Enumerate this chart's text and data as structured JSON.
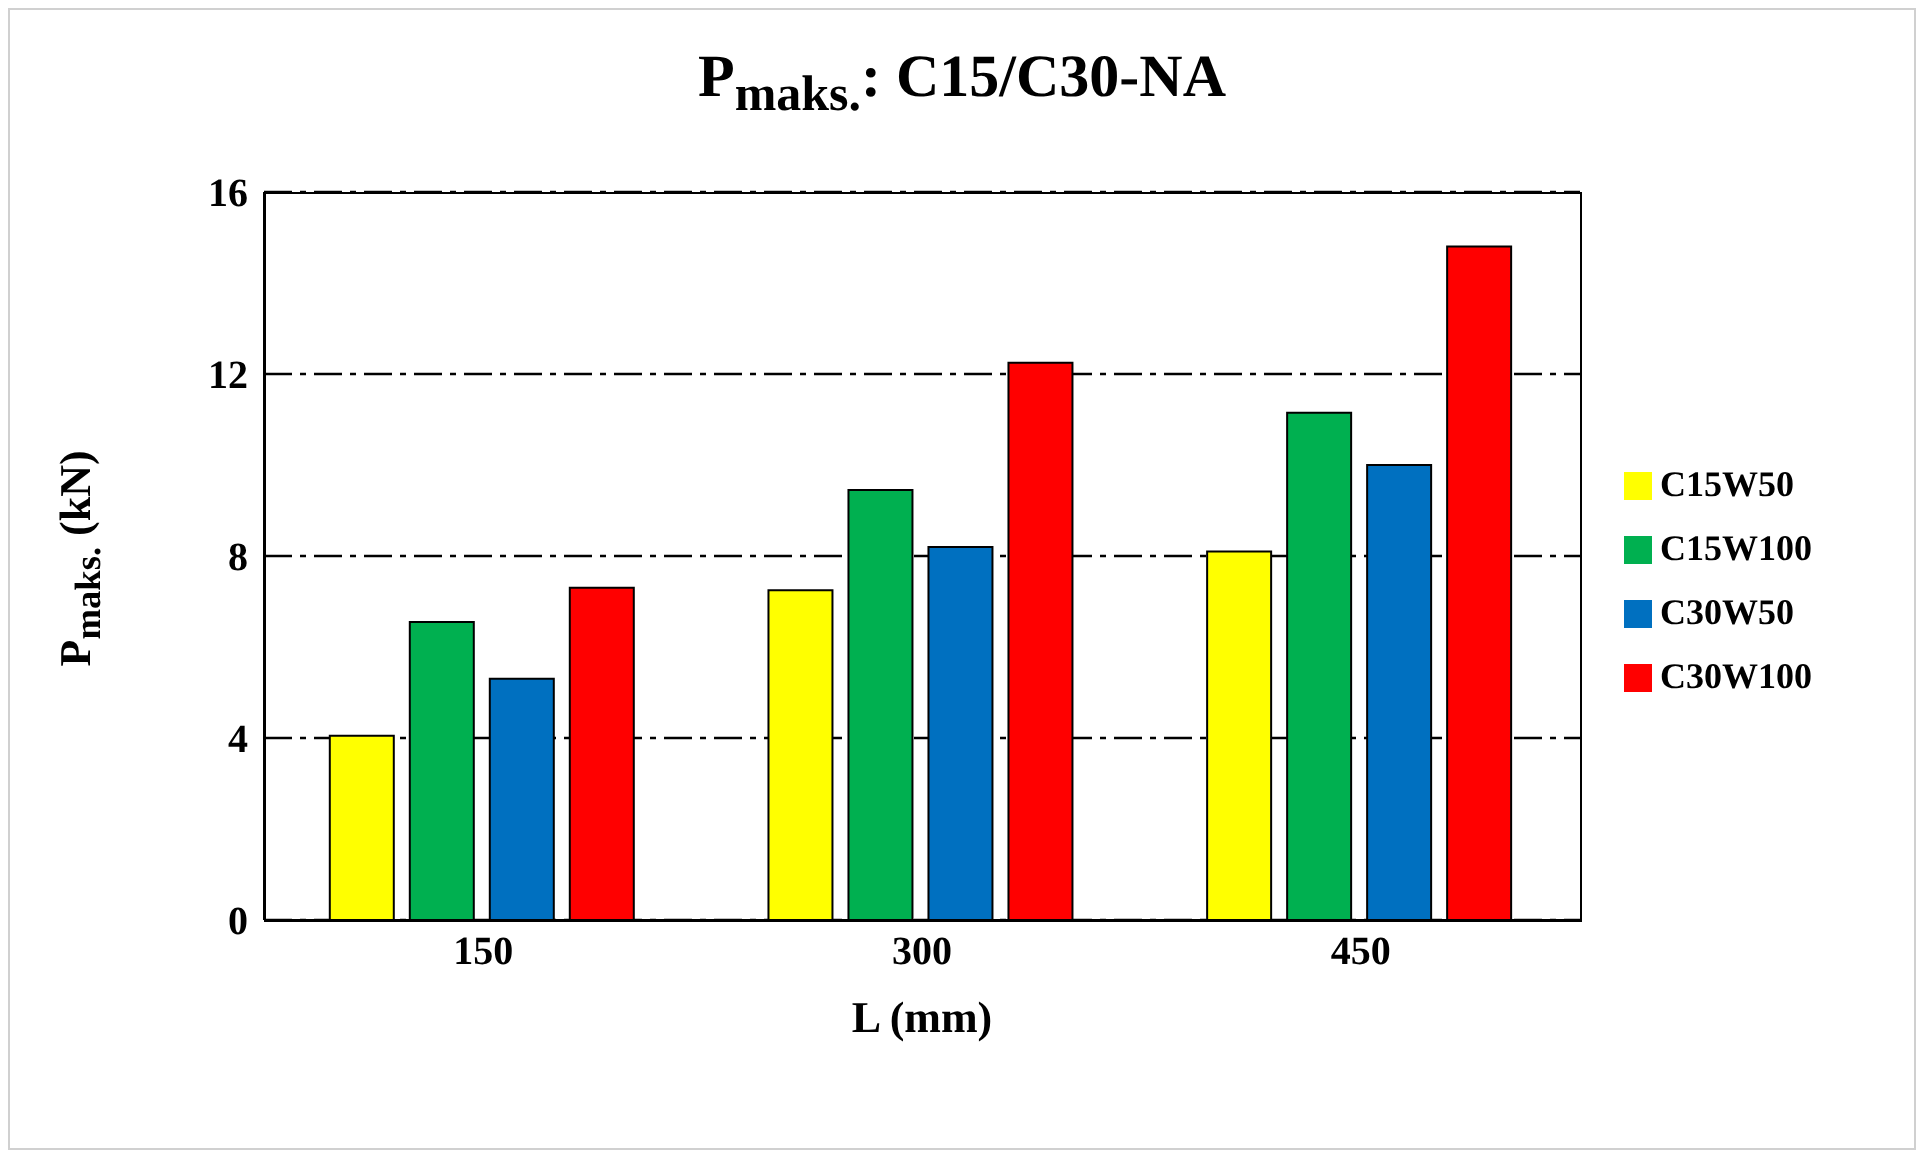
{
  "chart_data": {
    "type": "bar",
    "title": "P$_{maks.}$: C15/C30-NA",
    "xlabel": "L (mm)",
    "ylabel": "P$_{maks.}$ (kN)",
    "categories": [
      "150",
      "300",
      "450"
    ],
    "series": [
      {
        "name": "C15W50",
        "color": "#ffff00",
        "values": [
          4.05,
          7.25,
          8.1
        ]
      },
      {
        "name": "C15W100",
        "color": "#00b050",
        "values": [
          6.55,
          9.45,
          11.15
        ]
      },
      {
        "name": "C30W50",
        "color": "#0070c0",
        "values": [
          5.3,
          8.2,
          10
        ]
      },
      {
        "name": "C30W100",
        "color": "#ff0000",
        "values": [
          7.3,
          12.25,
          14.8
        ]
      }
    ],
    "ylim": [
      0,
      16
    ],
    "yticks": [
      0,
      4,
      8,
      12,
      16
    ],
    "grid": "y",
    "legend": "right"
  }
}
